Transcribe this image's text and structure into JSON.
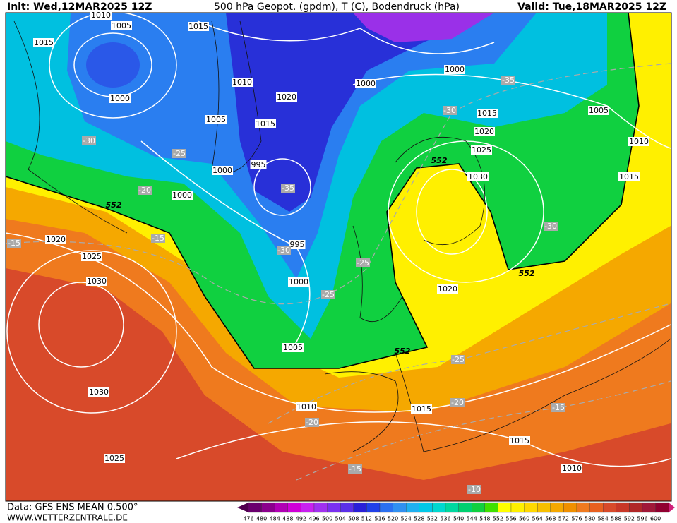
{
  "header": {
    "init": "Init: Wed,12MAR2025 12Z",
    "title": "500 hPa Geopot. (gpdm), T (C), Bodendruck (hPa)",
    "valid": "Valid: Tue,18MAR2025 12Z"
  },
  "map": {
    "isobars": [
      1010,
      1005,
      1015,
      1015,
      1000,
      1010,
      1020,
      1000,
      1000,
      1005,
      1015,
      1015,
      1005,
      1020,
      1025,
      1010,
      995,
      1000,
      1030,
      1015,
      1000,
      1020,
      995,
      1025,
      1030,
      1000,
      1020,
      1005,
      1030,
      1010,
      1015,
      1015,
      1025,
      1010
    ],
    "temperatures": [
      -35,
      -30,
      -30,
      -25,
      -35,
      -20,
      -30,
      -15,
      -15,
      -30,
      -25,
      -25,
      -25,
      -20,
      -15,
      -20,
      -15,
      -10
    ],
    "contours_552": [
      552,
      552,
      552,
      552
    ]
  },
  "colorbar": {
    "labels": [
      476,
      480,
      484,
      488,
      492,
      496,
      500,
      504,
      508,
      512,
      516,
      520,
      524,
      528,
      532,
      536,
      540,
      544,
      548,
      552,
      556,
      560,
      564,
      568,
      572,
      576,
      580,
      584,
      588,
      592,
      596,
      600
    ]
  },
  "footer": {
    "data": "Data: GFS ENS MEAN 0.500°",
    "url": "WWW.WETTERZENTRALE.DE"
  }
}
